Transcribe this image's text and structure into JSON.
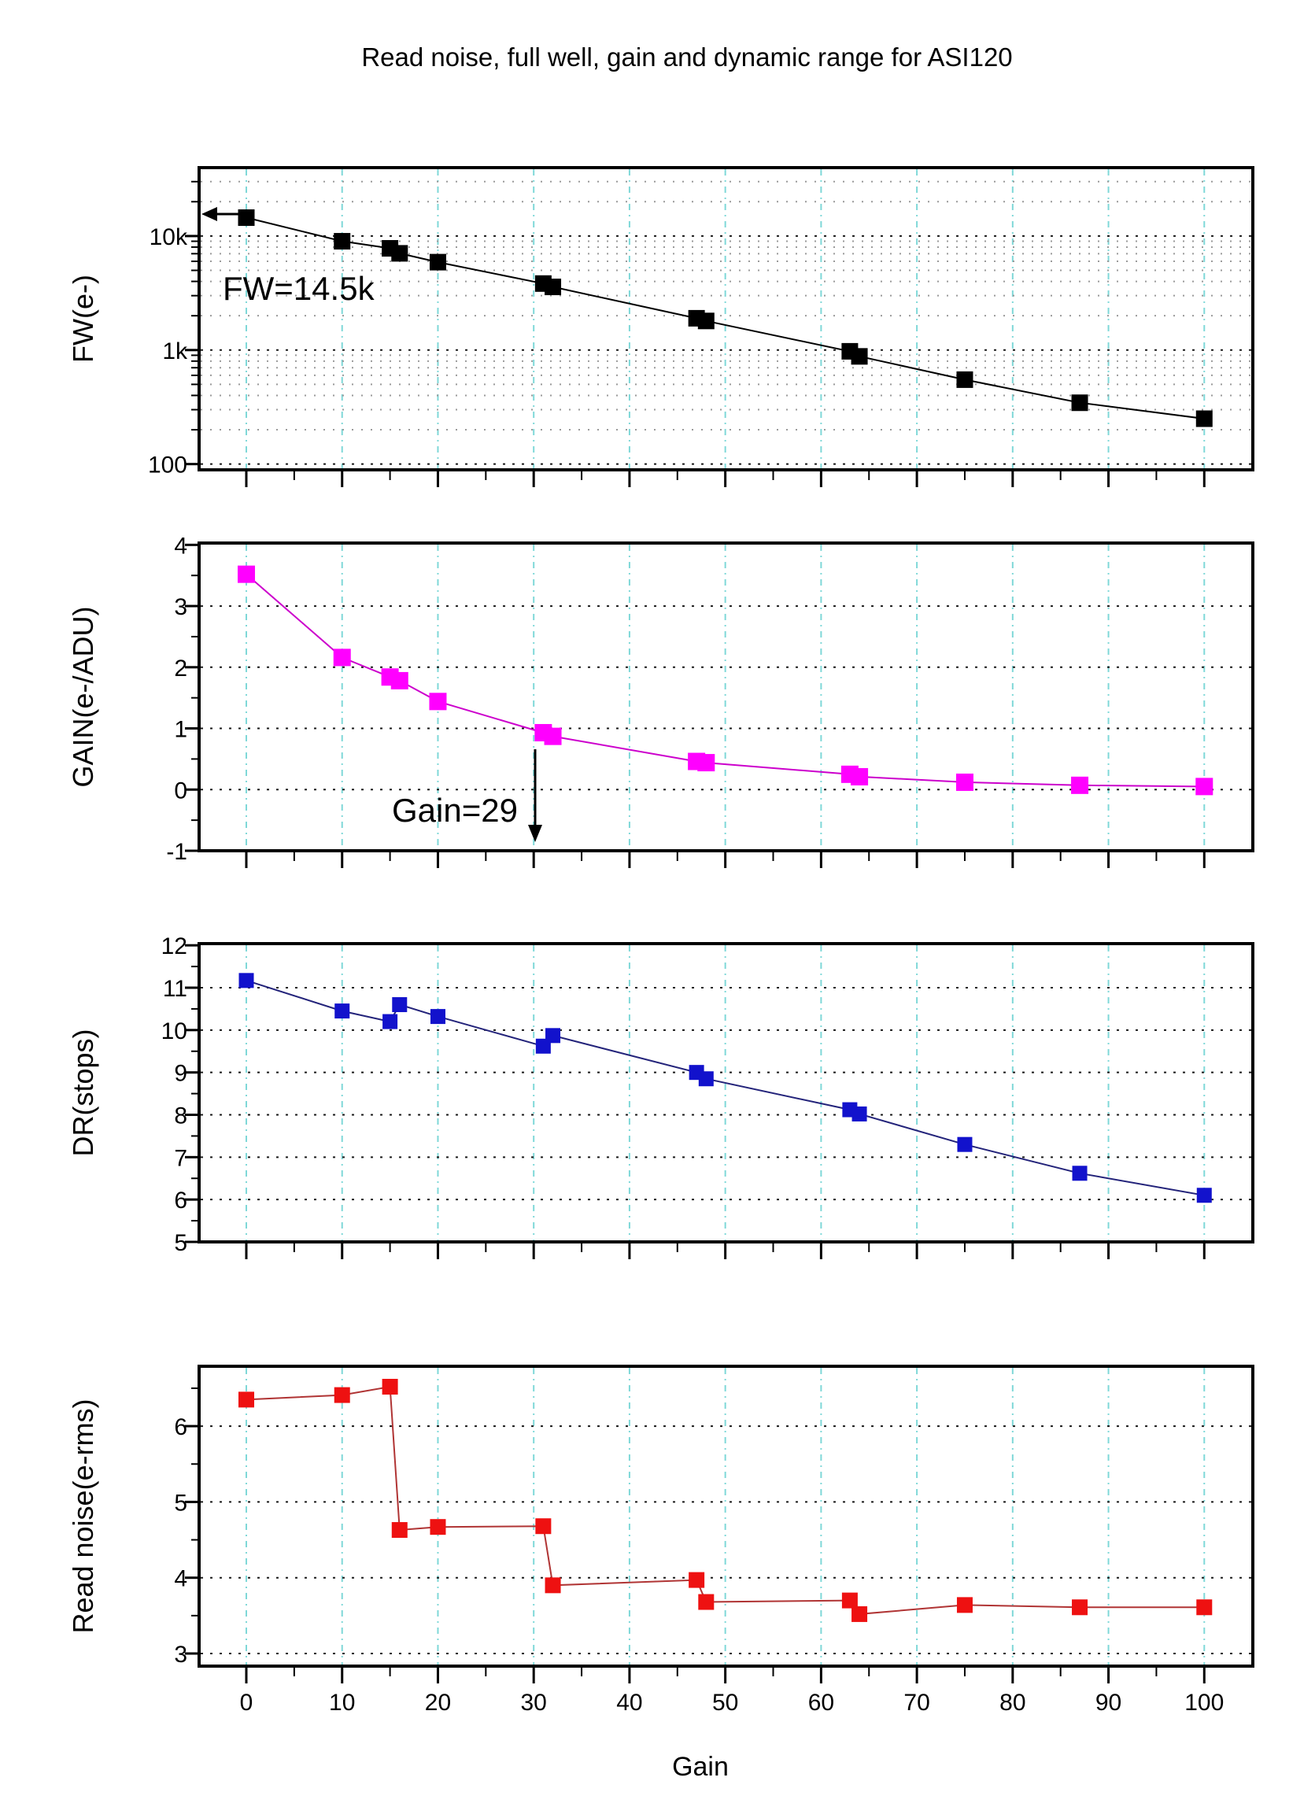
{
  "title": "Read noise, full well, gain and dynamic range for ASI120",
  "x_axis": {
    "label": "Gain",
    "tick_values": [
      0,
      10,
      20,
      30,
      40,
      50,
      60,
      70,
      80,
      90,
      100
    ],
    "tick_labels": [
      "0",
      "10",
      "20",
      "30",
      "40",
      "50",
      "60",
      "70",
      "80",
      "90",
      "100"
    ],
    "minor_step": 5,
    "range": [
      -4.93,
      105.07
    ],
    "grid": "on"
  },
  "colors": {
    "background": "#ffffff",
    "frame": "#000000",
    "grid_vertical_cyan": "#7fd8d8",
    "grid_horizontal_major": "#1a1a1a",
    "grid_horizontal_minor": "#9a9a9a",
    "fw_marker": "#000000",
    "fw_line": "#000000",
    "gain_marker": "#ff00ff",
    "gain_line": "#cc00cc",
    "dr_marker": "#1212cc",
    "dr_line": "#23237a",
    "rn_marker": "#ee1111",
    "rn_line": "#b03434",
    "text": "#000000"
  },
  "annotations": {
    "full_well": "FW=14.5k",
    "unity_gain": "Gain=29"
  },
  "chart_data": [
    {
      "type": "scatter",
      "name": "full-well",
      "ylabel": "FW(e-)",
      "yscale": "log",
      "ylim": [
        89,
        39800
      ],
      "yticks": [
        {
          "v": 10000,
          "label": "10k"
        },
        {
          "v": 1000,
          "label": "1k"
        },
        {
          "v": 100,
          "label": "100"
        }
      ],
      "x": [
        0,
        10,
        15,
        16,
        20,
        31,
        32,
        47,
        48,
        63,
        64,
        75,
        87,
        100
      ],
      "y": [
        14500,
        9000,
        7800,
        7050,
        5900,
        3830,
        3580,
        1900,
        1800,
        975,
        880,
        550,
        345,
        250
      ],
      "legend": "none",
      "annotation": {
        "text_key": "full_well",
        "arrow": "left"
      }
    },
    {
      "type": "scatter",
      "name": "gain",
      "ylabel": "GAIN(e-/ADU)",
      "yscale": "linear",
      "ylim": [
        -1.0,
        4.03
      ],
      "yticks": [
        {
          "v": 4,
          "label": "4"
        },
        {
          "v": 3,
          "label": "3"
        },
        {
          "v": 2,
          "label": "2"
        },
        {
          "v": 1,
          "label": "1"
        },
        {
          "v": 0,
          "label": "0"
        },
        {
          "v": -1,
          "label": "-1"
        }
      ],
      "x": [
        0,
        10,
        15,
        16,
        20,
        31,
        32,
        47,
        48,
        63,
        64,
        75,
        87,
        100
      ],
      "y": [
        3.52,
        2.16,
        1.84,
        1.78,
        1.44,
        0.93,
        0.87,
        0.46,
        0.44,
        0.25,
        0.21,
        0.12,
        0.07,
        0.05
      ],
      "legend": "none",
      "annotation": {
        "text_key": "unity_gain",
        "arrow": "down"
      }
    },
    {
      "type": "scatter",
      "name": "dynamic-range",
      "ylabel": "DR(stops)",
      "yscale": "linear",
      "ylim": [
        5,
        12.04
      ],
      "yticks": [
        {
          "v": 12,
          "label": "12"
        },
        {
          "v": 11,
          "label": "11"
        },
        {
          "v": 10,
          "label": "10"
        },
        {
          "v": 9,
          "label": "9"
        },
        {
          "v": 8,
          "label": "8"
        },
        {
          "v": 7,
          "label": "7"
        },
        {
          "v": 6,
          "label": "6"
        },
        {
          "v": 5,
          "label": "5"
        }
      ],
      "x": [
        0,
        10,
        15,
        16,
        20,
        31,
        32,
        47,
        48,
        63,
        64,
        75,
        87,
        100
      ],
      "y": [
        11.17,
        10.45,
        10.2,
        10.6,
        10.32,
        9.62,
        9.87,
        9.0,
        8.85,
        8.12,
        8.02,
        7.3,
        6.62,
        6.1
      ],
      "legend": "none",
      "annotation": null
    },
    {
      "type": "scatter",
      "name": "read-noise",
      "ylabel": "Read noise(e-rms)",
      "yscale": "linear",
      "ylim": [
        2.834,
        6.79
      ],
      "yticks": [
        {
          "v": 6,
          "label": "6"
        },
        {
          "v": 5,
          "label": "5"
        },
        {
          "v": 4,
          "label": "4"
        },
        {
          "v": 3,
          "label": "3"
        }
      ],
      "x": [
        0,
        10,
        15,
        16,
        20,
        31,
        32,
        47,
        48,
        63,
        64,
        75,
        87,
        100
      ],
      "y": [
        6.35,
        6.41,
        6.52,
        4.63,
        4.67,
        4.68,
        3.9,
        3.97,
        3.68,
        3.7,
        3.52,
        3.64,
        3.61,
        3.61
      ],
      "legend": "none",
      "annotation": null
    }
  ]
}
